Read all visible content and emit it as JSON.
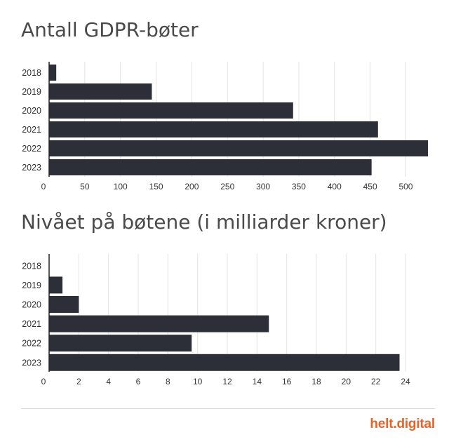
{
  "chart_data": [
    {
      "type": "bar",
      "orientation": "horizontal",
      "title": "Antall GDPR-bøter",
      "categories": [
        "2018",
        "2019",
        "2020",
        "2021",
        "2022",
        "2023"
      ],
      "values": [
        10,
        144,
        342,
        461,
        531,
        452
      ],
      "xlim": [
        0,
        531
      ],
      "xticks": [
        "0",
        "50",
        "100",
        "150",
        "200",
        "250",
        "300",
        "350",
        "400",
        "450",
        "500"
      ],
      "grid": true,
      "bar_color": "#2d2f38"
    },
    {
      "type": "bar",
      "orientation": "horizontal",
      "title": "Nivået på bøtene (i milliarder kroner)",
      "categories": [
        "2018",
        "2019",
        "2020",
        "2021",
        "2022",
        "2023"
      ],
      "values": [
        0,
        0.9,
        2.0,
        14.8,
        9.6,
        23.6
      ],
      "xlim": [
        0,
        24
      ],
      "xticks": [
        "0",
        "2",
        "4",
        "6",
        "8",
        "10",
        "12",
        "14",
        "16",
        "18",
        "20",
        "22",
        "24"
      ],
      "grid": true,
      "bar_color": "#2d2f38"
    }
  ],
  "footer": {
    "brand": "helt.digital"
  }
}
